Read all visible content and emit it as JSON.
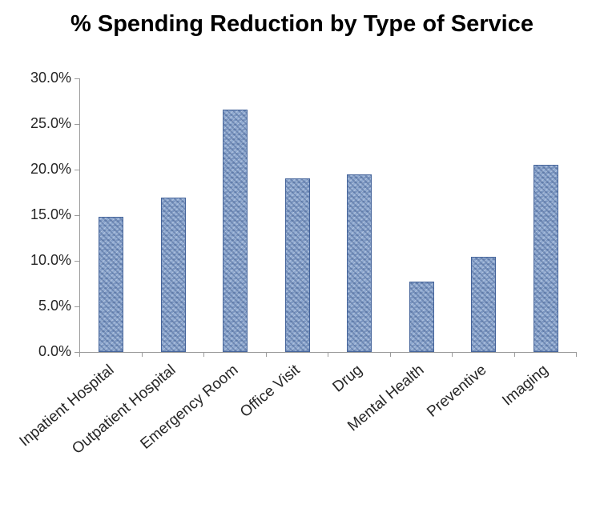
{
  "chart_data": {
    "type": "bar",
    "title": "% Spending Reduction by Type of Service",
    "categories": [
      "Inpatient Hospital",
      "Outpatient Hospital",
      "Emergency Room",
      "Office Visit",
      "Drug",
      "Mental Health",
      "Preventive",
      "Imaging"
    ],
    "values": [
      14.8,
      16.9,
      26.6,
      19.0,
      19.5,
      7.7,
      10.4,
      20.5
    ],
    "value_unit": "percent",
    "xlabel": "",
    "ylabel": "",
    "ylim": [
      0,
      30
    ],
    "ytick_step": 5,
    "ytick_labels": [
      "0.0%",
      "5.0%",
      "10.0%",
      "15.0%",
      "20.0%",
      "25.0%",
      "30.0%"
    ],
    "grid": false,
    "legend": false,
    "bar_fill": "#8fa9d0",
    "bar_border": "#46659b"
  }
}
